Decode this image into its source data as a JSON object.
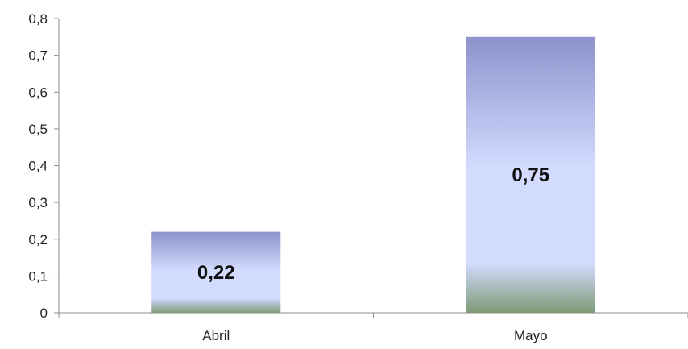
{
  "chart_data": {
    "type": "bar",
    "categories": [
      "Abril",
      "Mayo"
    ],
    "values": [
      0.22,
      0.75
    ],
    "data_labels": [
      "0,22",
      "0,75"
    ],
    "title": "",
    "xlabel": "",
    "ylabel": "",
    "ylim": [
      0,
      0.8
    ],
    "yticks": [
      0,
      0.1,
      0.2,
      0.3,
      0.4,
      0.5,
      0.6,
      0.7,
      0.8
    ],
    "ytick_labels": [
      "0",
      "0,1",
      "0,2",
      "0,3",
      "0,4",
      "0,5",
      "0,6",
      "0,7",
      "0,8"
    ],
    "grid": false,
    "legend": "none",
    "colors": {
      "bar_top": "#8d92cc",
      "bar_mid": "#d3dcff",
      "bar_bottom": "#7f9a78",
      "axis": "#8c8c8c"
    }
  }
}
